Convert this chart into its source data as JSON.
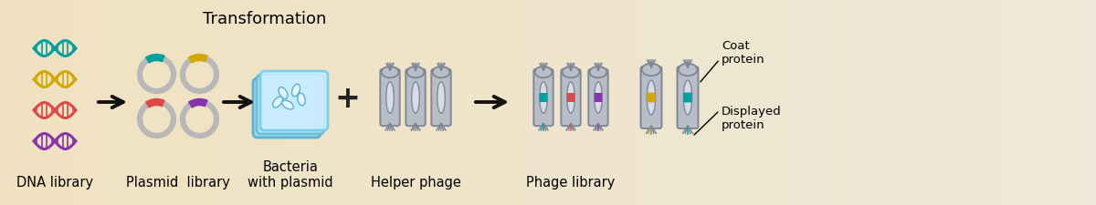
{
  "bg_color_left": "#f0e2c0",
  "bg_color_right": "#ede8d8",
  "dna_colors": [
    "#00a0a0",
    "#d4a800",
    "#e04848",
    "#8833aa"
  ],
  "plasmid_colors": [
    "#00a0a0",
    "#d4a800",
    "#e04848",
    "#8833aa"
  ],
  "labels": {
    "dna": "DNA library",
    "plasmid": "Plasmid  library",
    "bacteria": "Bacteria\nwith plasmid",
    "helper": "Helper phage",
    "phage_lib": "Phage library",
    "transformation": "Transformation",
    "coat": "Coat\nprotein",
    "displayed": "Displayed\nprotein"
  },
  "label_fontsize": 10.5,
  "title_fontsize": 13,
  "arrow_color": "#111111",
  "phage_body_color": "#b8bec8",
  "phage_edge_color": "#808898",
  "phage_inner_color": "#d8dce8"
}
